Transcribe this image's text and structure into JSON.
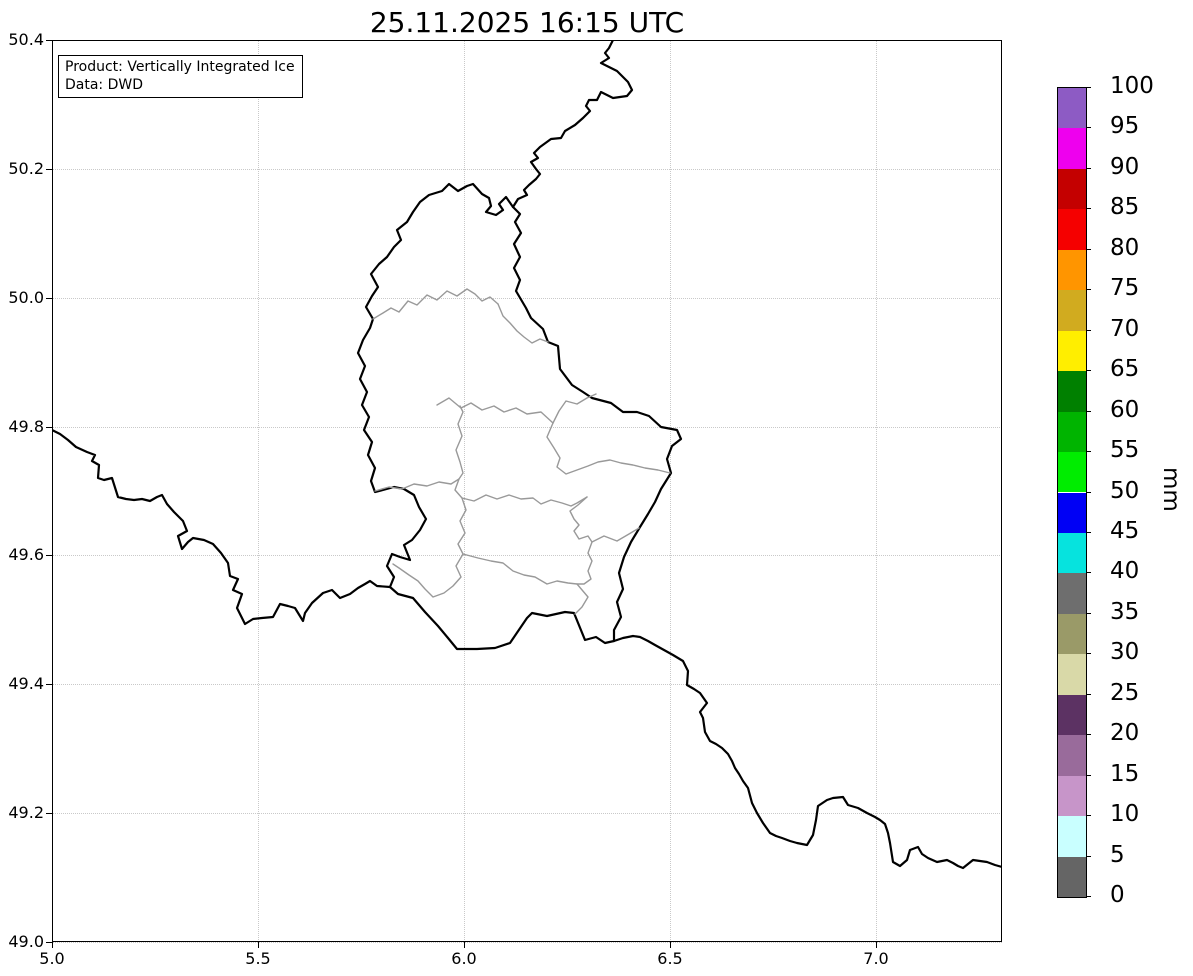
{
  "title": "25.11.2025 16:15 UTC",
  "info_box": {
    "line1": "Product: Vertically Integrated Ice",
    "line2": "Data: DWD"
  },
  "axes": {
    "x_tick_labels": [
      "5.0",
      "5.5",
      "6.0",
      "6.5",
      "7.0"
    ],
    "y_tick_labels": [
      "50.4",
      "50.2",
      "50.0",
      "49.8",
      "49.6",
      "49.4",
      "49.2",
      "49.0"
    ]
  },
  "colorbar": {
    "unit_label": "mm",
    "tick_labels": [
      "100",
      "95",
      "90",
      "85",
      "80",
      "75",
      "70",
      "65",
      "60",
      "55",
      "50",
      "45",
      "40",
      "35",
      "30",
      "25",
      "20",
      "15",
      "10",
      "5",
      "0"
    ],
    "segments_top_to_bottom": [
      {
        "range": "95-100",
        "color": "#8d5bc4"
      },
      {
        "range": "90-95",
        "color": "#ee00ee"
      },
      {
        "range": "85-90",
        "color": "#c40000"
      },
      {
        "range": "80-85",
        "color": "#f50000"
      },
      {
        "range": "75-80",
        "color": "#ff9500"
      },
      {
        "range": "70-75",
        "color": "#d1ab1f"
      },
      {
        "range": "65-70",
        "color": "#ffee00"
      },
      {
        "range": "60-65",
        "color": "#008000"
      },
      {
        "range": "55-60",
        "color": "#00b400"
      },
      {
        "range": "50-55",
        "color": "#00ed00"
      },
      {
        "range": "45-50",
        "color": "#0000f5"
      },
      {
        "range": "40-45",
        "color": "#06e3de"
      },
      {
        "range": "35-40",
        "color": "#6e6e6e"
      },
      {
        "range": "30-35",
        "color": "#9a9a68"
      },
      {
        "range": "25-30",
        "color": "#d9d9a8"
      },
      {
        "range": "20-25",
        "color": "#5c3263"
      },
      {
        "range": "15-20",
        "color": "#996b9b"
      },
      {
        "range": "10-15",
        "color": "#c795c9"
      },
      {
        "range": "5-10",
        "color": "#c9ffff"
      },
      {
        "range": "0-5",
        "color": "#656565"
      }
    ]
  },
  "chart_data": {
    "type": "map",
    "title": "25.11.2025 16:15 UTC",
    "product": "Vertically Integrated Ice",
    "data_source": "DWD",
    "units": "mm",
    "region": "Luxembourg with Belgian, German and French borders; Luxembourg canton boundaries in gray",
    "extent": {
      "lon_min": 5.0,
      "lon_max": 7.3,
      "lat_min": 49.0,
      "lat_max": 50.4
    },
    "x_ticks": [
      5.0,
      5.5,
      6.0,
      6.5,
      7.0
    ],
    "y_ticks": [
      50.4,
      50.2,
      50.0,
      49.8,
      49.6,
      49.4,
      49.2,
      49.0
    ],
    "grid": "dotted light gray at tick positions",
    "field_values": "no colored data cells visible (empty / zero field)",
    "colorbar": {
      "min": 0,
      "max": 100,
      "step": 5,
      "position": "right",
      "orientation": "vertical"
    }
  },
  "style": {
    "border_color": "#000000",
    "canton_border_color": "#999999",
    "grid_color": "#c9c9c9",
    "background": "#ffffff"
  }
}
